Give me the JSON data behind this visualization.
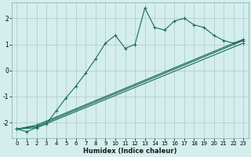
{
  "xlabel": "Humidex (Indice chaleur)",
  "xlim": [
    -0.5,
    23.5
  ],
  "ylim": [
    -2.6,
    2.6
  ],
  "xticks": [
    0,
    1,
    2,
    3,
    4,
    5,
    6,
    7,
    8,
    9,
    10,
    11,
    12,
    13,
    14,
    15,
    16,
    17,
    18,
    19,
    20,
    21,
    22,
    23
  ],
  "yticks": [
    -2,
    -1,
    0,
    1,
    2
  ],
  "bg_color": "#d4eeed",
  "grid_color": "#b2cece",
  "line_color": "#1a6b5a",
  "wavy_x": [
    0,
    1,
    2,
    3,
    4,
    5,
    6,
    7,
    8,
    9,
    10,
    11,
    12,
    13,
    14,
    15,
    16,
    17,
    18,
    19,
    20,
    21,
    22,
    23
  ],
  "wavy_y": [
    -2.25,
    -2.35,
    -2.2,
    -2.05,
    -1.55,
    -1.05,
    -0.6,
    -0.1,
    0.45,
    1.05,
    1.35,
    0.85,
    1.0,
    2.4,
    1.65,
    1.55,
    1.9,
    2.0,
    1.75,
    1.65,
    1.35,
    1.15,
    1.05,
    1.15
  ],
  "line1_x": [
    0,
    2,
    23
  ],
  "line1_y": [
    -2.25,
    -2.2,
    1.05
  ],
  "line2_x": [
    0,
    2,
    23
  ],
  "line2_y": [
    -2.25,
    -2.15,
    1.15
  ],
  "line3_x": [
    0,
    2,
    23
  ],
  "line3_y": [
    -2.25,
    -2.1,
    1.2
  ]
}
